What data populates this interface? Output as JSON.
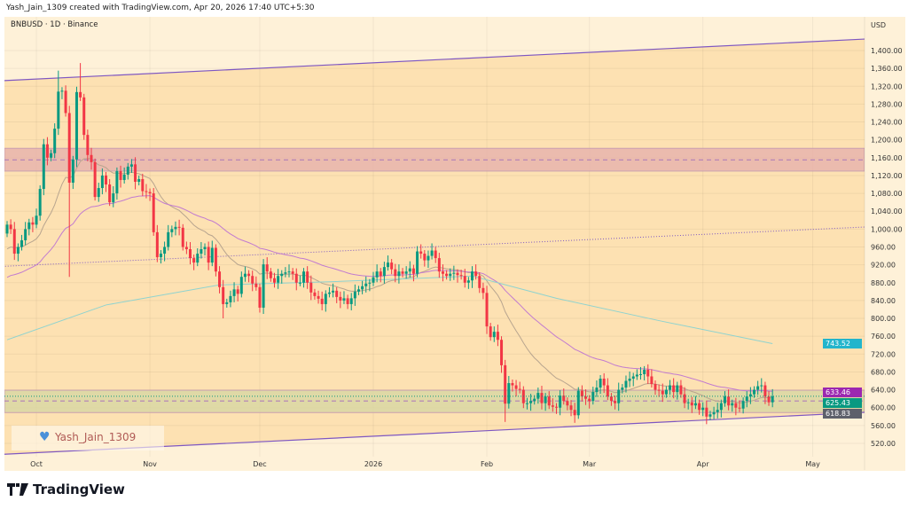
{
  "header": {
    "caption": "Yash_Jain_1309 created with TradingView.com, Apr 20, 2026 17:40 UTC+5:30"
  },
  "symbol_label": "BNBUSD · 1D · Binance",
  "watermark": {
    "icon": "heart-icon",
    "text": "Yash_Jain_1309"
  },
  "footer": {
    "logo_text": "TradingView"
  },
  "colors": {
    "up": "#089981",
    "down": "#f23645",
    "channel_fill": "#fde1b2",
    "outer_fill": "#fef1d8",
    "channel_line": "#7e57c2",
    "resistance_zone": "#e8b4ad",
    "support_zone": "#d9d7a3"
  },
  "chart_data": {
    "type": "candlestick",
    "symbol": "BNBUSD",
    "interval": "1D",
    "exchange": "Binance",
    "currency": "USD",
    "start_date": "2025-09-23",
    "first_open": 990,
    "close": [
      1010,
      1000,
      945,
      960,
      975,
      1000,
      1015,
      1010,
      1030,
      1090,
      1190,
      1160,
      1170,
      1225,
      1308,
      1310,
      1260,
      1104,
      1156,
      1307,
      1295,
      1211,
      1166,
      1150,
      1072,
      1092,
      1120,
      1100,
      1060,
      1080,
      1130,
      1110,
      1122,
      1140,
      1145,
      1106,
      1112,
      1085,
      1083,
      1080,
      993,
      937,
      945,
      960,
      993,
      1000,
      1005,
      1003,
      960,
      955,
      935,
      925,
      945,
      955,
      960,
      925,
      958,
      905,
      870,
      832,
      836,
      850,
      865,
      855,
      893,
      900,
      895,
      878,
      870,
      824,
      921,
      905,
      890,
      880,
      895,
      900,
      903,
      905,
      900,
      880,
      880,
      905,
      880,
      858,
      850,
      844,
      832,
      855,
      858,
      862,
      848,
      840,
      845,
      832,
      845,
      860,
      865,
      872,
      878,
      880,
      892,
      905,
      895,
      915,
      925,
      910,
      895,
      905,
      900,
      905,
      912,
      900,
      950,
      945,
      930,
      940,
      952,
      935,
      905,
      900,
      895,
      900,
      902,
      897,
      895,
      880,
      885,
      905,
      895,
      868,
      857,
      782,
      758,
      770,
      752,
      695,
      609,
      655,
      650,
      642,
      640,
      610,
      610,
      615,
      620,
      633,
      610,
      625,
      605,
      602,
      600,
      627,
      615,
      605,
      595,
      583,
      638,
      625,
      620,
      615,
      635,
      645,
      665,
      650,
      625,
      615,
      610,
      640,
      645,
      660,
      665,
      670,
      674,
      675,
      685,
      670,
      653,
      640,
      638,
      630,
      640,
      650,
      635,
      650,
      630,
      610,
      612,
      605,
      610,
      595,
      600,
      580,
      585,
      590,
      595,
      610,
      625,
      605,
      610,
      600,
      598,
      615,
      625,
      630,
      640,
      648,
      650,
      625,
      612,
      625.43
    ],
    "notable_wicks": [
      {
        "date": "2025-10-07",
        "high": 1355
      },
      {
        "date": "2025-10-10",
        "low": 893
      },
      {
        "date": "2025-10-13",
        "high": 1372
      },
      {
        "date": "2025-11-21",
        "low": 800
      },
      {
        "date": "2026-02-06",
        "low": 568
      }
    ],
    "y_ticks": [
      1400,
      1360,
      1320,
      1280,
      1240,
      1200,
      1160,
      1120,
      1080,
      1040,
      1000,
      960,
      920,
      880,
      840,
      800,
      760,
      720,
      680,
      640,
      600,
      560,
      520
    ],
    "ylim": [
      500,
      1440
    ],
    "x_ticks": [
      {
        "label": "Oct",
        "date": "2025-10-01"
      },
      {
        "label": "Nov",
        "date": "2025-11-01"
      },
      {
        "label": "Dec",
        "date": "2025-12-01"
      },
      {
        "label": "2026",
        "date": "2026-01-01"
      },
      {
        "label": "Feb",
        "date": "2026-02-01"
      },
      {
        "label": "Mar",
        "date": "2026-03-01"
      },
      {
        "label": "Apr",
        "date": "2026-04-01"
      },
      {
        "label": "May",
        "date": "2026-05-01"
      }
    ],
    "indicators": [
      {
        "type": "EMA",
        "length": 20,
        "seed": 950,
        "color": "#b8a58f",
        "last_label": "618.83",
        "label_color": "#5d606b"
      },
      {
        "type": "EMA",
        "length": 50,
        "seed": 887,
        "color": "#c27bd0",
        "last_label": "633.46",
        "label_color": "#9c27b0"
      },
      {
        "type": "series",
        "color": "#8fd3cf",
        "last_label": "743.52",
        "label_color": "#22b5cc",
        "points": [
          [
            "2025-09-23",
            752
          ],
          [
            "2025-10-20",
            830
          ],
          [
            "2025-11-20",
            875
          ],
          [
            "2025-12-20",
            882
          ],
          [
            "2026-01-20",
            892
          ],
          [
            "2026-01-28",
            895
          ],
          [
            "2026-02-20",
            845
          ],
          [
            "2026-03-20",
            795
          ],
          [
            "2026-04-20",
            743.52
          ]
        ]
      }
    ],
    "price_label": {
      "text": "625.43",
      "color": "#089981"
    },
    "drawings": {
      "upper_channel": {
        "from": [
          "2025-09-23",
          1333
        ],
        "to": [
          "2026-05-16",
          1426
        ]
      },
      "lower_channel": {
        "from": [
          "2025-09-23",
          496
        ],
        "to": [
          "2026-05-16",
          590
        ]
      },
      "dotted_trendline": {
        "from": [
          "2025-09-23",
          917
        ],
        "to": [
          "2026-05-16",
          1005
        ]
      },
      "resistance_zone": {
        "top": 1181,
        "bottom": 1130,
        "mid": 1155
      },
      "support_zone": {
        "top": 639,
        "bottom": 589,
        "mid": 615
      }
    }
  }
}
